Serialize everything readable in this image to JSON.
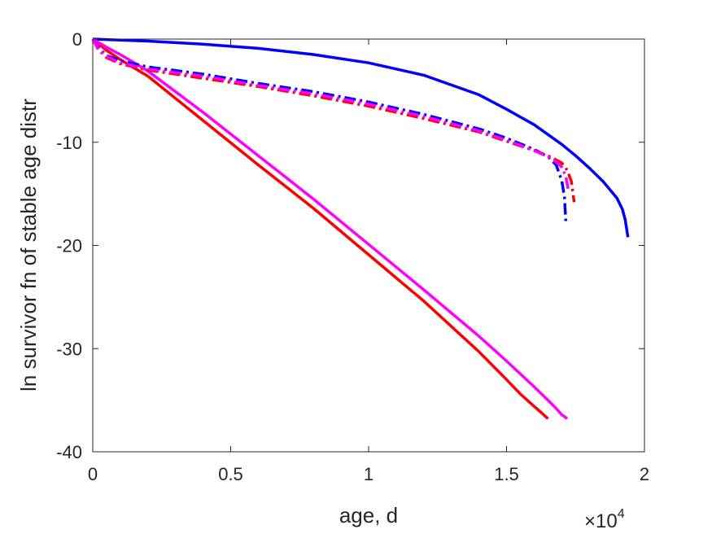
{
  "chart_data": {
    "type": "line",
    "xlabel": "age, d",
    "ylabel": "ln survivor fn of stable age distr",
    "x_multiplier": {
      "base": "×10",
      "exponent": "4"
    },
    "xlim": [
      0,
      20000
    ],
    "ylim": [
      -40,
      0
    ],
    "x_ticks": [
      0,
      5000,
      10000,
      15000,
      20000
    ],
    "x_tick_labels": [
      "0",
      "0.5",
      "1",
      "1.5",
      "2"
    ],
    "y_ticks": [
      0,
      -10,
      -20,
      -30,
      -40
    ],
    "y_tick_labels": [
      "0",
      "-10",
      "-20",
      "-30",
      "-40"
    ],
    "grid": false,
    "box": true,
    "series": [
      {
        "color": "#0000FF",
        "dash": "solid",
        "x": [
          0,
          2000,
          4000,
          6000,
          8000,
          10000,
          12000,
          14000,
          15000,
          16000,
          17000,
          17500,
          18000,
          18500,
          19000,
          19200,
          19300,
          19400
        ],
        "y": [
          0,
          -0.2,
          -0.5,
          -0.9,
          -1.5,
          -2.3,
          -3.5,
          -5.4,
          -6.8,
          -8.3,
          -10.2,
          -11.3,
          -12.5,
          -13.8,
          -15.4,
          -16.5,
          -17.5,
          -19.2
        ]
      },
      {
        "color": "#FF0000",
        "dash": "solid",
        "x": [
          0,
          500,
          1000,
          2000,
          4000,
          6000,
          8000,
          10000,
          12000,
          14000,
          15000,
          15500,
          16000,
          16300,
          16500
        ],
        "y": [
          0,
          -1.1,
          -2.0,
          -3.6,
          -7.9,
          -12.2,
          -16.4,
          -20.9,
          -25.4,
          -30.3,
          -33.0,
          -34.4,
          -35.6,
          -36.3,
          -36.8
        ]
      },
      {
        "color": "#FF00FF",
        "dash": "solid",
        "x": [
          0,
          500,
          1000,
          2000,
          4000,
          6000,
          8000,
          10000,
          12000,
          14000,
          15000,
          16000,
          16500,
          16800,
          17000,
          17200
        ],
        "y": [
          0,
          -0.8,
          -1.5,
          -3.1,
          -7.1,
          -11.3,
          -15.5,
          -19.9,
          -24.3,
          -28.8,
          -31.2,
          -33.7,
          -35.0,
          -35.8,
          -36.4,
          -36.8
        ]
      },
      {
        "color": "#0000FF",
        "dash": "dashdot",
        "x": [
          0,
          200,
          500,
          1000,
          2000,
          4000,
          6000,
          8000,
          10000,
          12000,
          14000,
          15000,
          16000,
          16500,
          16800,
          17000,
          17100,
          17150
        ],
        "y": [
          0,
          -0.8,
          -1.6,
          -2.1,
          -2.7,
          -3.4,
          -4.3,
          -5.1,
          -6.1,
          -7.3,
          -8.7,
          -9.6,
          -10.7,
          -11.4,
          -12.2,
          -13.7,
          -15.3,
          -17.8
        ]
      },
      {
        "color": "#FF0000",
        "dash": "dashdot",
        "x": [
          0,
          200,
          500,
          1000,
          2000,
          4000,
          6000,
          8000,
          10000,
          12000,
          14000,
          15000,
          16000,
          16500,
          17000,
          17200,
          17350,
          17450
        ],
        "y": [
          0,
          -1.0,
          -1.8,
          -2.4,
          -3.0,
          -3.8,
          -4.6,
          -5.5,
          -6.5,
          -7.7,
          -9.0,
          -9.9,
          -10.8,
          -11.3,
          -12.0,
          -12.7,
          -13.8,
          -15.8
        ]
      },
      {
        "color": "#FF00FF",
        "dash": "dashdot",
        "x": [
          0,
          200,
          500,
          1000,
          2000,
          4000,
          6000,
          8000,
          10000,
          12000,
          14000,
          15000,
          16000,
          16500,
          16800,
          17000,
          17150,
          17250
        ],
        "y": [
          0,
          -0.9,
          -1.7,
          -2.3,
          -2.9,
          -3.6,
          -4.5,
          -5.3,
          -6.3,
          -7.5,
          -8.9,
          -9.8,
          -10.8,
          -11.4,
          -11.9,
          -12.4,
          -13.3,
          -14.8
        ]
      }
    ]
  }
}
